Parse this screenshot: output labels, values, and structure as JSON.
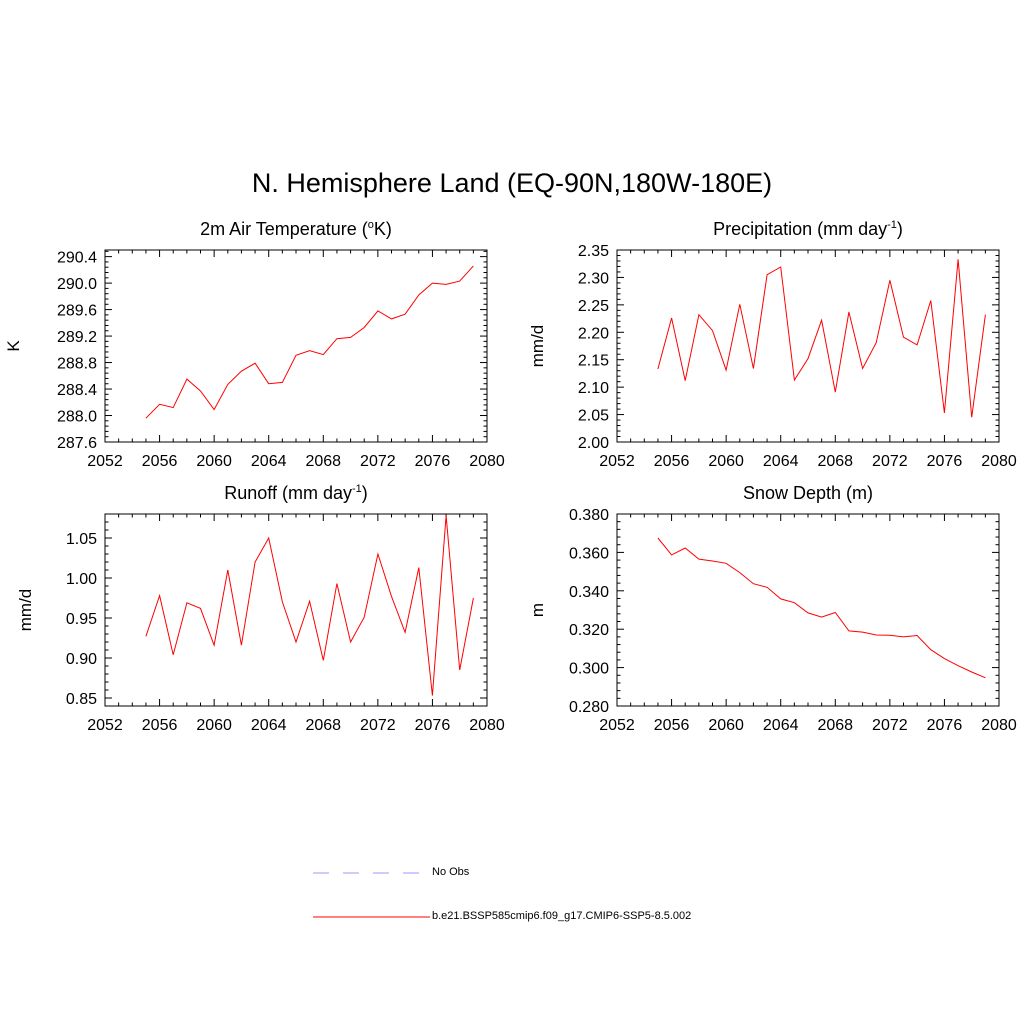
{
  "main_title": "N. Hemisphere Land (EQ-90N,180W-180E)",
  "colors": {
    "model_line": "#ff0000",
    "obs_line": "#9999ff",
    "axes": "#000000"
  },
  "legend": {
    "obs_label": "No Obs",
    "model_label": "b.e21.BSSP585cmip6.f09_g17.CMIP6-SSP5-8.5.002"
  },
  "panels": [
    {
      "title_main": "2m Air Temperature (",
      "title_sup": "o",
      "title_end": "K)",
      "ylabel": "K"
    },
    {
      "title_main": "Precipitation (mm day",
      "title_sup": "-1",
      "title_end": ")",
      "ylabel": "mm/d"
    },
    {
      "title_main": "Runoff (mm day",
      "title_sup": "-1",
      "title_end": ")",
      "ylabel": "mm/d"
    },
    {
      "title_main": "Snow Depth (m)",
      "title_sup": "",
      "title_end": "",
      "ylabel": "m"
    }
  ],
  "chart_data": [
    {
      "type": "line",
      "title": "2m Air Temperature (oK)",
      "xlabel": "",
      "ylabel": "K",
      "xlim": [
        2052,
        2080
      ],
      "ylim": [
        287.6,
        290.5
      ],
      "xticks": [
        "2052",
        "2056",
        "2060",
        "2064",
        "2068",
        "2072",
        "2076",
        "2080"
      ],
      "yticks": [
        "287.6",
        "288.0",
        "288.4",
        "288.8",
        "289.2",
        "289.6",
        "290.0",
        "290.4"
      ],
      "x": [
        2055,
        2056,
        2057,
        2058,
        2059,
        2060,
        2061,
        2062,
        2063,
        2064,
        2065,
        2066,
        2067,
        2068,
        2069,
        2070,
        2071,
        2072,
        2073,
        2074,
        2075,
        2076,
        2077,
        2078,
        2079
      ],
      "series": [
        {
          "values": [
            287.96,
            288.17,
            288.12,
            288.55,
            288.37,
            288.09,
            288.47,
            288.67,
            288.79,
            288.48,
            288.5,
            288.91,
            288.98,
            288.92,
            289.16,
            289.18,
            289.33,
            289.58,
            289.46,
            289.53,
            289.82,
            290.0,
            289.98,
            290.03,
            290.26
          ]
        }
      ]
    },
    {
      "type": "line",
      "title": "Precipitation (mm day-1)",
      "xlabel": "",
      "ylabel": "mm/d",
      "xlim": [
        2052,
        2080
      ],
      "ylim": [
        2.0,
        2.35
      ],
      "xticks": [
        "2052",
        "2056",
        "2060",
        "2064",
        "2068",
        "2072",
        "2076",
        "2080"
      ],
      "yticks": [
        "2.00",
        "2.05",
        "2.10",
        "2.15",
        "2.20",
        "2.25",
        "2.30",
        "2.35"
      ],
      "x": [
        2055,
        2056,
        2057,
        2058,
        2059,
        2060,
        2061,
        2062,
        2063,
        2064,
        2065,
        2066,
        2067,
        2068,
        2069,
        2070,
        2071,
        2072,
        2073,
        2074,
        2075,
        2076,
        2077,
        2078,
        2079
      ],
      "series": [
        {
          "values": [
            2.133,
            2.226,
            2.112,
            2.232,
            2.203,
            2.131,
            2.251,
            2.134,
            2.305,
            2.319,
            2.113,
            2.152,
            2.222,
            2.091,
            2.237,
            2.134,
            2.181,
            2.295,
            2.191,
            2.177,
            2.258,
            2.053,
            2.333,
            2.045,
            2.232
          ]
        }
      ]
    },
    {
      "type": "line",
      "title": "Runoff (mm day-1)",
      "xlabel": "",
      "ylabel": "mm/d",
      "xlim": [
        2052,
        2080
      ],
      "ylim": [
        0.84,
        1.08
      ],
      "xticks": [
        "2052",
        "2056",
        "2060",
        "2064",
        "2068",
        "2072",
        "2076",
        "2080"
      ],
      "yticks": [
        "0.85",
        "0.90",
        "0.95",
        "1.00",
        "1.05"
      ],
      "x": [
        2055,
        2056,
        2057,
        2058,
        2059,
        2060,
        2061,
        2062,
        2063,
        2064,
        2065,
        2066,
        2067,
        2068,
        2069,
        2070,
        2071,
        2072,
        2073,
        2074,
        2075,
        2076,
        2077,
        2078,
        2079
      ],
      "series": [
        {
          "values": [
            0.927,
            0.978,
            0.904,
            0.969,
            0.962,
            0.916,
            1.01,
            0.916,
            1.02,
            1.05,
            0.97,
            0.92,
            0.971,
            0.897,
            0.993,
            0.92,
            0.951,
            1.03,
            0.977,
            0.932,
            1.013,
            0.853,
            1.078,
            0.885,
            0.975
          ]
        }
      ]
    },
    {
      "type": "line",
      "title": "Snow Depth (m)",
      "xlabel": "",
      "ylabel": "m",
      "xlim": [
        2052,
        2080
      ],
      "ylim": [
        0.28,
        0.38
      ],
      "xticks": [
        "2052",
        "2056",
        "2060",
        "2064",
        "2068",
        "2072",
        "2076",
        "2080"
      ],
      "yticks": [
        "0.280",
        "0.300",
        "0.320",
        "0.340",
        "0.360",
        "0.380"
      ],
      "x": [
        2055,
        2056,
        2057,
        2058,
        2059,
        2060,
        2061,
        2062,
        2063,
        2064,
        2065,
        2066,
        2067,
        2068,
        2069,
        2070,
        2071,
        2072,
        2073,
        2074,
        2075,
        2076,
        2077,
        2078,
        2079
      ],
      "series": [
        {
          "values": [
            0.3675,
            0.3587,
            0.3623,
            0.3565,
            0.3555,
            0.3543,
            0.3495,
            0.3437,
            0.3418,
            0.3358,
            0.3338,
            0.3285,
            0.3263,
            0.3287,
            0.3191,
            0.3185,
            0.317,
            0.3168,
            0.316,
            0.3167,
            0.3093,
            0.3047,
            0.301,
            0.2977,
            0.2947
          ]
        }
      ]
    }
  ]
}
